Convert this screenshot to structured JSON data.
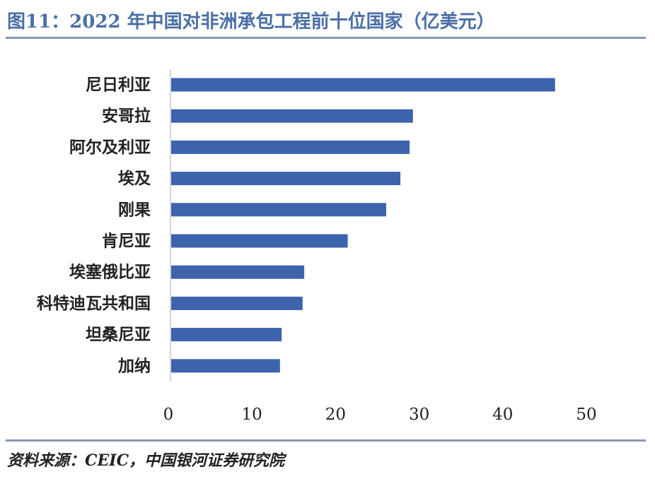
{
  "title": "图11：2022 年中国对非洲承包工程前十位国家（亿美元）",
  "source": "资料来源：CEIC，中国银河证券研究院",
  "colors": {
    "bar": "#3d63ad",
    "title": "#4a6fa5",
    "rule": "#8497b8",
    "axis": "#c8c8c8"
  },
  "chart_data": {
    "type": "bar",
    "orientation": "horizontal",
    "title": "图11：2022 年中国对非洲承包工程前十位国家（亿美元）",
    "categories": [
      "尼日利亚",
      "安哥拉",
      "阿尔及利亚",
      "埃及",
      "刚果",
      "肯尼亚",
      "埃塞俄比亚",
      "科特迪瓦共和国",
      "坦桑尼亚",
      "加纳"
    ],
    "values": [
      46.0,
      29.0,
      28.6,
      27.5,
      25.8,
      21.2,
      16.0,
      15.8,
      13.3,
      13.1
    ],
    "xlim": [
      0,
      50
    ],
    "xticks": [
      0,
      10,
      20,
      30,
      40,
      50
    ],
    "xlabel": "",
    "ylabel": "",
    "grid": false,
    "legend": "none"
  }
}
